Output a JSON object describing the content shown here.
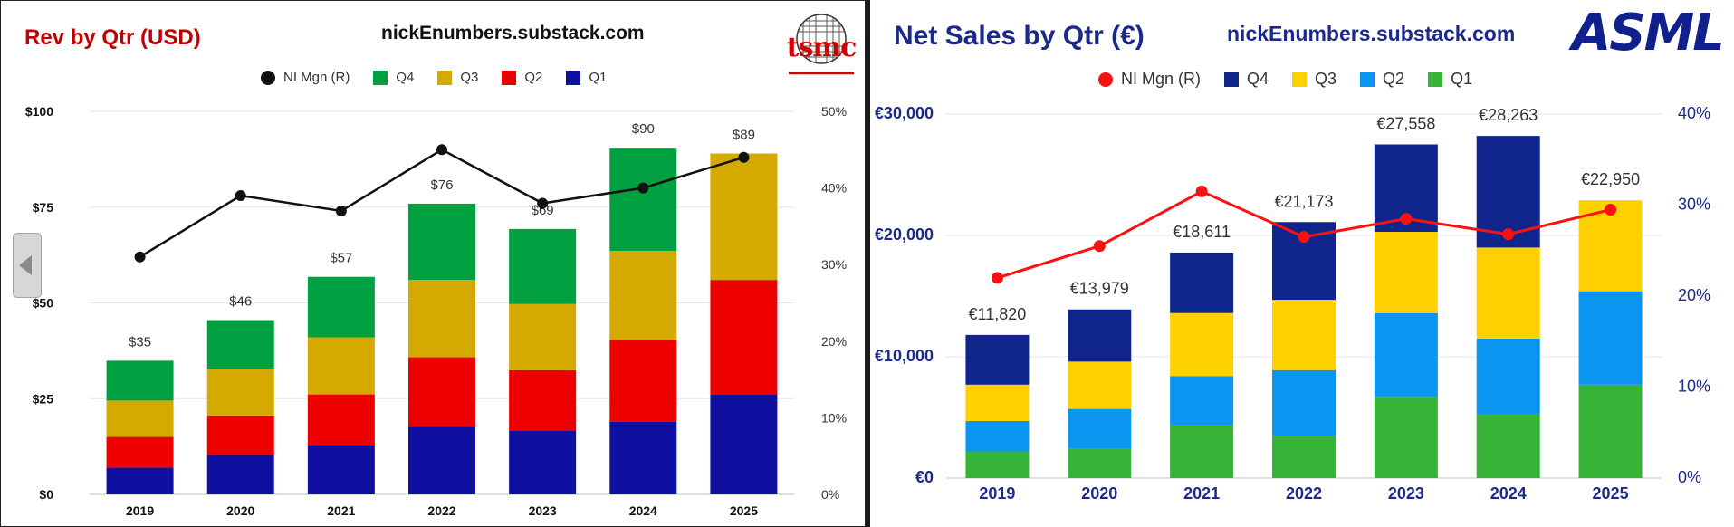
{
  "chart_data": [
    {
      "type": "bar",
      "stacked": true,
      "title": "Rev by Qtr (USD)",
      "source": "nickEnumbers.substack.com",
      "logo": "tsmc",
      "categories": [
        "2019",
        "2020",
        "2021",
        "2022",
        "2023",
        "2024",
        "2025"
      ],
      "series": [
        {
          "name": "Q1",
          "color": "#1010a0",
          "values": [
            7,
            10.3,
            12.9,
            17.6,
            16.7,
            19.0,
            26.0
          ]
        },
        {
          "name": "Q2",
          "color": "#ee0000",
          "values": [
            8,
            10.3,
            13.2,
            18.2,
            15.7,
            21.3,
            30.0
          ]
        },
        {
          "name": "Q3",
          "color": "#d4aa00",
          "values": [
            9.5,
            12.2,
            14.9,
            20.2,
            17.3,
            23.3,
            33.0
          ]
        },
        {
          "name": "Q4",
          "color": "#00a040",
          "values": [
            10.4,
            12.7,
            15.8,
            19.9,
            19.6,
            26.9,
            0
          ]
        }
      ],
      "totals": [
        "$35",
        "$46",
        "$57",
        "$76",
        "$69",
        "$90",
        "$89"
      ],
      "line": {
        "name": "NI Mgn (R)",
        "color": "#111111",
        "values": [
          31,
          39,
          37,
          45,
          38,
          40,
          44
        ]
      },
      "ylim": [
        0,
        100
      ],
      "y2lim": [
        0,
        50
      ],
      "y_ticks": [
        "$0",
        "$25",
        "$50",
        "$75",
        "$100"
      ],
      "y2_ticks": [
        "0%",
        "10%",
        "20%",
        "30%",
        "40%",
        "50%"
      ],
      "legend": [
        "NI Mgn (R)",
        "Q4",
        "Q3",
        "Q2",
        "Q1"
      ],
      "legend_position": "top-center",
      "grid": true
    },
    {
      "type": "bar",
      "stacked": true,
      "title": "Net Sales by Qtr (€)",
      "source": "nickEnumbers.substack.com",
      "logo": "ASML",
      "categories": [
        "2019",
        "2020",
        "2021",
        "2022",
        "2023",
        "2024",
        "2025"
      ],
      "series": [
        {
          "name": "Q1",
          "color": "#37b437",
          "values": [
            2200,
            2400,
            4400,
            3500,
            6700,
            5300,
            7700
          ]
        },
        {
          "name": "Q2",
          "color": "#0a96f0",
          "values": [
            2500,
            3300,
            4000,
            5400,
            6900,
            6200,
            7700
          ]
        },
        {
          "name": "Q3",
          "color": "#ffd000",
          "values": [
            3000,
            3900,
            5200,
            5800,
            6700,
            7500,
            7500
          ]
        },
        {
          "name": "Q4",
          "color": "#10258c",
          "values": [
            4100,
            4300,
            4986,
            6400,
            7200,
            9200,
            0
          ]
        }
      ],
      "totals": [
        "€11,820",
        "€13,979",
        "€18,611",
        "€21,173",
        "€27,558",
        "€28,263",
        "€22,950"
      ],
      "line": {
        "name": "NI Mgn (R)",
        "color": "#ff1010",
        "values": [
          22,
          25.5,
          31.5,
          26.5,
          28.5,
          26.8,
          29.5
        ]
      },
      "ylim": [
        0,
        30000
      ],
      "y2lim": [
        0,
        40
      ],
      "y_ticks": [
        "€0",
        "€10,000",
        "€20,000",
        "€30,000"
      ],
      "y2_ticks": [
        "0%",
        "10%",
        "20%",
        "30%",
        "40%"
      ],
      "legend": [
        "NI Mgn (R)",
        "Q4",
        "Q3",
        "Q2",
        "Q1"
      ],
      "legend_position": "top-center",
      "grid": true
    }
  ]
}
